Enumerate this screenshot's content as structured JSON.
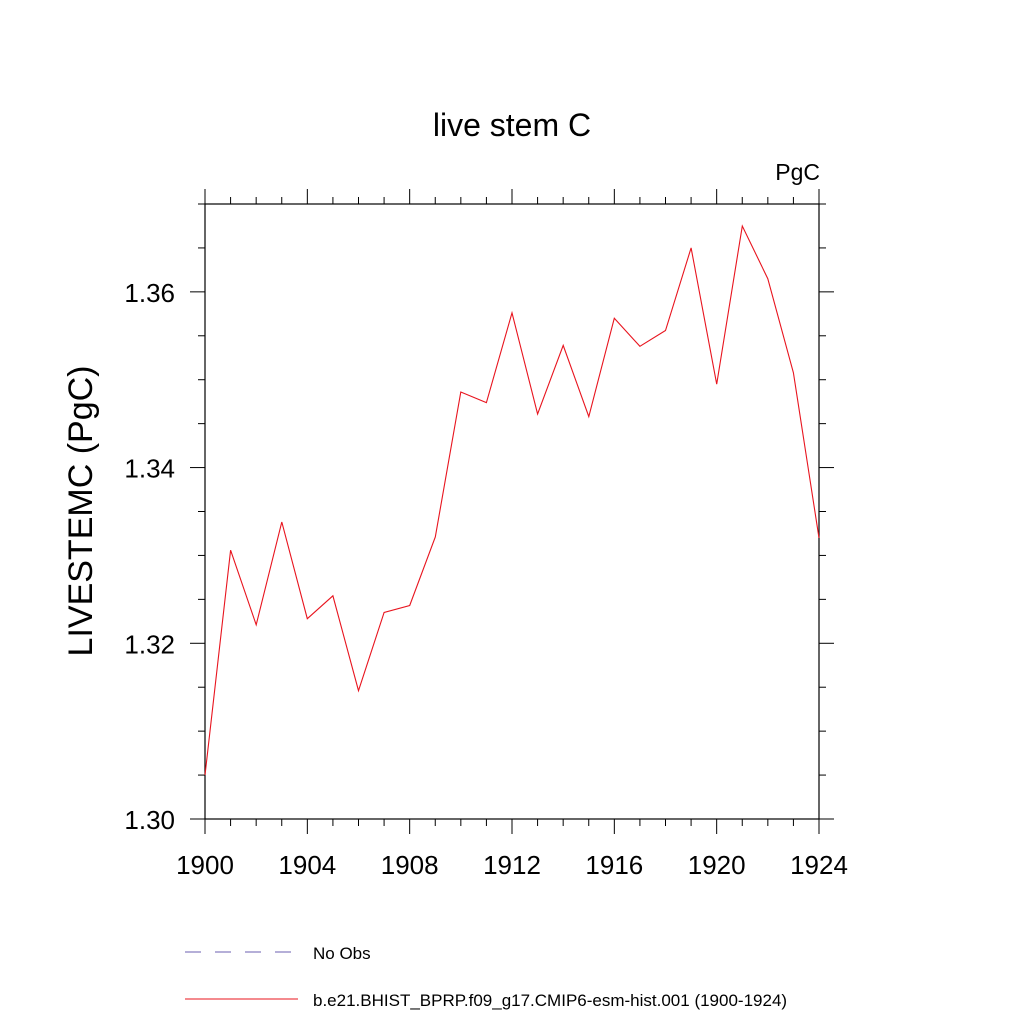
{
  "chart_data": {
    "type": "line",
    "title": "live stem C",
    "units_label": "PgC",
    "ylabel": "LIVESTEMC  (PgC)",
    "xlabel": "",
    "xlim": [
      1900,
      1924
    ],
    "ylim": [
      1.3,
      1.37
    ],
    "x_ticks": [
      1900,
      1904,
      1908,
      1912,
      1916,
      1920,
      1924
    ],
    "x_tick_labels": [
      "1900",
      "1904",
      "1908",
      "1912",
      "1916",
      "1920",
      "1924"
    ],
    "y_ticks": [
      1.3,
      1.32,
      1.34,
      1.36
    ],
    "y_tick_labels": [
      "1.30",
      "1.32",
      "1.34",
      "1.36"
    ],
    "grid": false,
    "legend_position": "bottom",
    "series": [
      {
        "name": "b.e21.BHIST_BPRP.f09_g17.CMIP6-esm-hist.001 (1900-1924)",
        "color": "#e8141e",
        "x": [
          1900,
          1901,
          1902,
          1903,
          1904,
          1905,
          1906,
          1907,
          1908,
          1909,
          1910,
          1911,
          1912,
          1913,
          1914,
          1915,
          1916,
          1917,
          1918,
          1919,
          1920,
          1921,
          1922,
          1923,
          1924
        ],
        "y": [
          1.305,
          1.3306,
          1.3221,
          1.3338,
          1.3228,
          1.3254,
          1.3146,
          1.3235,
          1.3243,
          1.3321,
          1.3486,
          1.3474,
          1.3576,
          1.3461,
          1.3539,
          1.3458,
          1.357,
          1.3538,
          1.3556,
          1.365,
          1.3495,
          1.3675,
          1.3615,
          1.3508,
          1.332
        ]
      }
    ],
    "legend": [
      {
        "label": "No Obs",
        "color": "#6b5fb0",
        "style": "dashed"
      },
      {
        "label": "b.e21.BHIST_BPRP.f09_g17.CMIP6-esm-hist.001 (1900-1924)",
        "color": "#e8141e",
        "style": "solid"
      }
    ]
  }
}
